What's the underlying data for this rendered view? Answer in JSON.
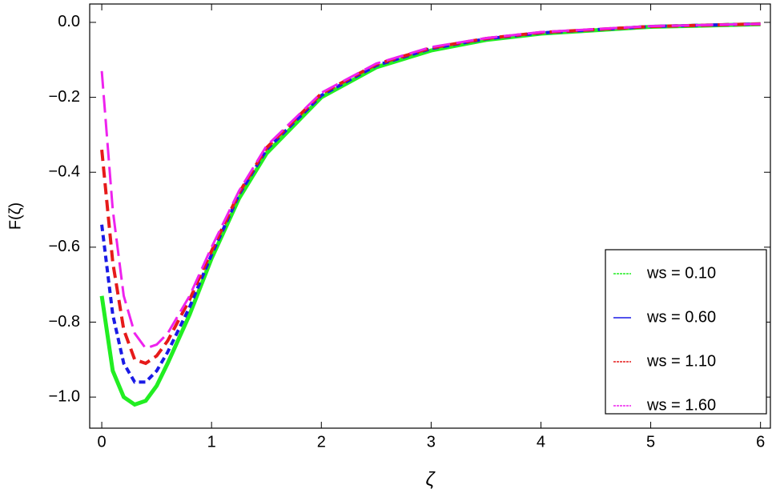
{
  "chart_data": {
    "type": "line",
    "xlabel": "ζ",
    "ylabel": "F(ζ)",
    "x": [
      0,
      0.1,
      0.2,
      0.3,
      0.4,
      0.5,
      0.6,
      0.8,
      1,
      1.25,
      1.5,
      2,
      2.5,
      3,
      3.5,
      4,
      5,
      6
    ],
    "series": [
      {
        "name": "ws = 0.10",
        "color": "#22ee22",
        "values": [
          -0.73,
          -0.93,
          -1.0,
          -1.02,
          -1.01,
          -0.97,
          -0.91,
          -0.78,
          -0.63,
          -0.47,
          -0.35,
          -0.2,
          -0.12,
          -0.075,
          -0.047,
          -0.03,
          -0.012,
          -0.005
        ]
      },
      {
        "name": "ws = 0.60",
        "color": "#1a1ae6",
        "values": [
          -0.54,
          -0.78,
          -0.91,
          -0.96,
          -0.96,
          -0.93,
          -0.88,
          -0.76,
          -0.62,
          -0.46,
          -0.34,
          -0.195,
          -0.115,
          -0.07,
          -0.044,
          -0.028,
          -0.011,
          -0.004
        ]
      },
      {
        "name": "ws = 1.10",
        "color": "#e61a1a",
        "values": [
          -0.34,
          -0.64,
          -0.82,
          -0.9,
          -0.91,
          -0.89,
          -0.85,
          -0.74,
          -0.61,
          -0.455,
          -0.335,
          -0.19,
          -0.112,
          -0.068,
          -0.043,
          -0.027,
          -0.011,
          -0.004
        ]
      },
      {
        "name": "ws = 1.60",
        "color": "#ee22ee",
        "values": [
          -0.13,
          -0.5,
          -0.73,
          -0.83,
          -0.87,
          -0.86,
          -0.83,
          -0.73,
          -0.6,
          -0.45,
          -0.33,
          -0.188,
          -0.11,
          -0.066,
          -0.042,
          -0.026,
          -0.01,
          -0.004
        ]
      }
    ],
    "xlim": [
      -0.11,
      6.09
    ],
    "ylim": [
      -1.083,
      0.049
    ],
    "xticks": [
      0,
      1,
      2,
      3,
      4,
      5,
      6
    ],
    "yticks": [
      {
        "value": 0,
        "label": "0.0"
      },
      {
        "value": -0.2,
        "label": "−0.2"
      },
      {
        "value": -0.4,
        "label": "−0.4"
      },
      {
        "value": -0.6,
        "label": "−0.6"
      },
      {
        "value": -0.8,
        "label": "−0.8"
      },
      {
        "value": -1.0,
        "label": "−1.0"
      }
    ],
    "legend": "lower right",
    "grid": false
  }
}
